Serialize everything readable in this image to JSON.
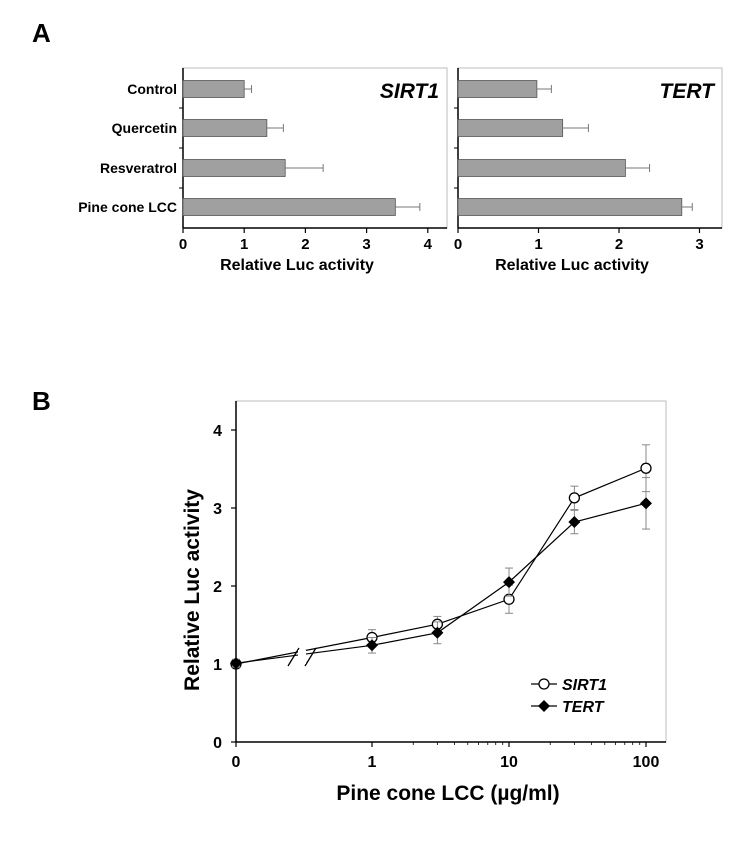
{
  "chart_data": [
    {
      "panel": "A",
      "type": "bar",
      "orientation": "horizontal",
      "title": "SIRT1",
      "categories": [
        "Control",
        "Quercetin",
        "Resveratrol",
        "Pine cone LCC"
      ],
      "values": [
        1.0,
        1.37,
        1.67,
        3.47
      ],
      "errors": [
        0.12,
        0.27,
        0.62,
        0.4
      ],
      "xlabel": "Relative Luc activity",
      "xlim": [
        0,
        4.3
      ],
      "xticks": [
        "0",
        "1",
        "2",
        "3",
        "4"
      ],
      "bar_color": "#a0a0a0"
    },
    {
      "panel": "",
      "type": "bar",
      "orientation": "horizontal",
      "title": "TERT",
      "categories": [
        "Control",
        "Quercetin",
        "Resveratrol",
        "Pine cone LCC"
      ],
      "values": [
        0.98,
        1.3,
        2.08,
        2.78
      ],
      "errors": [
        0.18,
        0.32,
        0.3,
        0.13
      ],
      "xlabel": "Relative Luc activity",
      "xlim": [
        0,
        3.3
      ],
      "xticks": [
        "0",
        "1",
        "2",
        "3"
      ],
      "bar_color": "#a0a0a0"
    },
    {
      "panel": "B",
      "type": "line",
      "xlabel": "Pine cone LCC (µg/ml)",
      "ylabel": "Relative Luc activity",
      "xscale": "log with axis break",
      "xticks": [
        "0",
        "1",
        "10",
        "100"
      ],
      "yticks": [
        "0",
        "1",
        "2",
        "3",
        "4"
      ],
      "ylim": [
        0,
        4.35
      ],
      "legend": "lower-right",
      "series": [
        {
          "name": "SIRT1",
          "marker": "open-circle",
          "x": [
            0,
            1,
            3,
            10,
            30,
            100
          ],
          "y": [
            1.0,
            1.34,
            1.51,
            1.83,
            3.13,
            3.51
          ],
          "err": [
            0.05,
            0.1,
            0.1,
            0.18,
            0.15,
            0.3
          ]
        },
        {
          "name": "TERT",
          "marker": "filled-diamond",
          "x": [
            0,
            1,
            3,
            10,
            30,
            100
          ],
          "y": [
            1.01,
            1.24,
            1.4,
            2.05,
            2.82,
            3.06
          ],
          "err": [
            0.05,
            0.1,
            0.14,
            0.18,
            0.15,
            0.33
          ]
        }
      ]
    }
  ]
}
